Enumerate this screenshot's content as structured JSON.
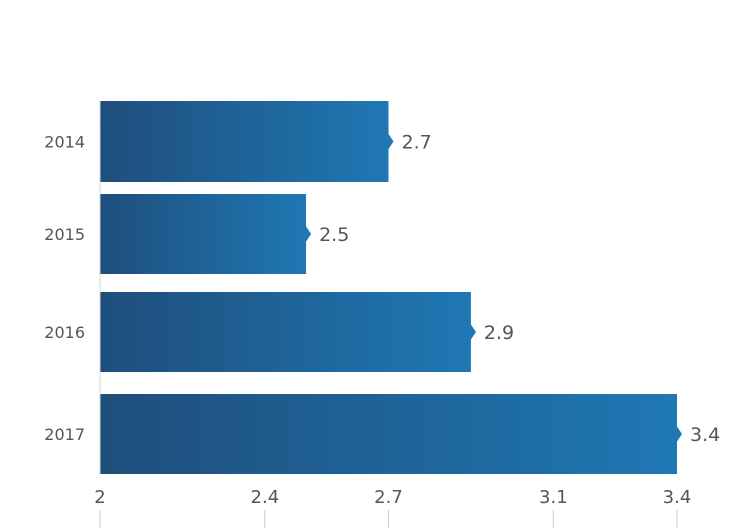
{
  "chart_data": {
    "type": "bar",
    "orientation": "horizontal",
    "categories": [
      "2014",
      "2015",
      "2016",
      "2017"
    ],
    "values": [
      2.7,
      2.5,
      2.9,
      3.4
    ],
    "value_labels": [
      "2.7",
      "2.5",
      "2.9",
      "3.4"
    ],
    "x_ticks": [
      {
        "value": 2,
        "label": "2"
      },
      {
        "value": 2.4,
        "label": "2.4"
      },
      {
        "value": 2.7,
        "label": "2.7"
      },
      {
        "value": 3.1,
        "label": "3.1"
      },
      {
        "value": 3.4,
        "label": "3.4"
      }
    ],
    "xlim": [
      2,
      3.4
    ],
    "title": "",
    "xlabel": "",
    "ylabel": "",
    "grid": false,
    "legend": "none",
    "colors": {
      "bar_start": "#1f4e7c",
      "bar_end": "#1f78b4",
      "text": "#555555",
      "tick": "#c8c8c8"
    }
  }
}
